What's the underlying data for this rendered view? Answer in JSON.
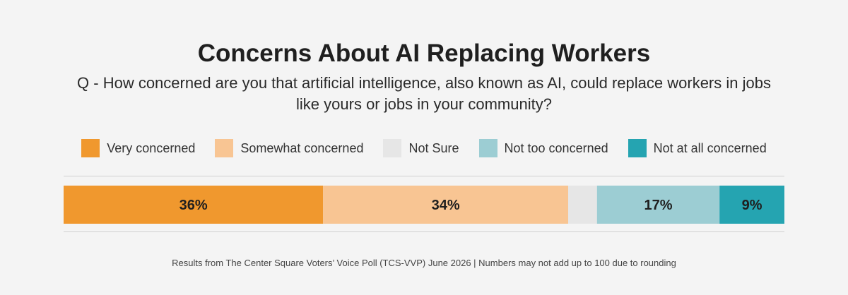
{
  "chart_data": {
    "type": "bar",
    "orientation": "horizontal-stacked",
    "title": "Concerns About AI Replacing Workers",
    "subtitle": "Q - How concerned are you that artificial intelligence, also known as AI, could replace workers in jobs like yours or jobs in your community?",
    "legend_position": "top-center",
    "categories": [
      "Very concerned",
      "Somewhat concerned",
      "Not Sure",
      "Not too concerned",
      "Not at all concerned"
    ],
    "values": [
      36,
      34,
      4,
      17,
      9
    ],
    "value_labels": [
      "36%",
      "34%",
      "",
      "17%",
      "9%"
    ],
    "colors": [
      "#f0982e",
      "#f8c593",
      "#e6e6e6",
      "#9ccdd3",
      "#25a4b1"
    ],
    "unit": "%",
    "xlim": [
      0,
      100
    ],
    "note": "Results from The Center Square Voters’ Voice Poll (TCS-VVP) June 2026 | Numbers may not add up to 100 due to rounding"
  }
}
